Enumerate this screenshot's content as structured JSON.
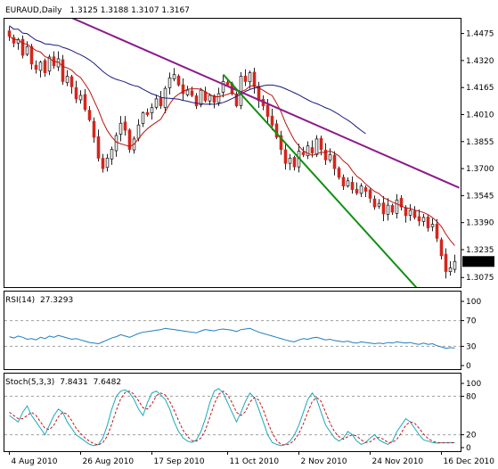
{
  "colors": {
    "background": "#ffffff",
    "frame": "#000000",
    "candle_body": "#d4261d",
    "candle_wick": "#222222",
    "ma_fast": "#b8150e",
    "ma_slow": "#1a1a80",
    "trend_purple": "#8b1a8b",
    "trend_green": "#109010",
    "rsi_line": "#1e7fbf",
    "stoch_k": "#1aa9bd",
    "stoch_d": "#c01818",
    "grid_dash": "#a0a0a0",
    "price_tag_bg": "#000000",
    "price_tag_text": "#ffffff"
  },
  "header": {
    "symbol": "EURAUD,Daily",
    "ohlc": "1.3125 1.3188 1.3107 1.3167"
  },
  "rsi_header": {
    "label": "RSI(14)",
    "value": "27.3293"
  },
  "stoch_header": {
    "label": "Stoch(5,3,3)",
    "k": "7.8431",
    "d": "7.6482"
  },
  "price_tag": "1.3167",
  "chart_data": [
    {
      "type": "candlestick",
      "title": "EURAUD,Daily",
      "y_ticks": [
        "1.4475",
        "1.4320",
        "1.4165",
        "1.4010",
        "1.3855",
        "1.3700",
        "1.3545",
        "1.3390",
        "1.3235",
        "1.3075"
      ],
      "ylim": [
        1.302,
        1.4565
      ],
      "x_ticks": [
        "4 Aug 2010",
        "26 Aug 2010",
        "17 Sep 2010",
        "11 Oct 2010",
        "2 Nov 2010",
        "24 Nov 2010",
        "16 Dec 2010"
      ],
      "x_tick_index": [
        0,
        16,
        32,
        49,
        65,
        81,
        97
      ],
      "candle_count": 101,
      "close_series": [
        1.446,
        1.442,
        1.444,
        1.435,
        1.44,
        1.43,
        1.427,
        1.431,
        1.425,
        1.434,
        1.429,
        1.433,
        1.42,
        1.423,
        1.417,
        1.41,
        1.412,
        1.404,
        1.398,
        1.388,
        1.376,
        1.37,
        1.376,
        1.381,
        1.389,
        1.396,
        1.392,
        1.381,
        1.387,
        1.395,
        1.402,
        1.401,
        1.405,
        1.41,
        1.406,
        1.416,
        1.422,
        1.424,
        1.418,
        1.413,
        1.415,
        1.412,
        1.406,
        1.415,
        1.409,
        1.412,
        1.408,
        1.413,
        1.42,
        1.418,
        1.413,
        1.406,
        1.423,
        1.42,
        1.425,
        1.417,
        1.409,
        1.406,
        1.4,
        1.395,
        1.388,
        1.381,
        1.373,
        1.376,
        1.371,
        1.38,
        1.378,
        1.383,
        1.379,
        1.387,
        1.381,
        1.375,
        1.378,
        1.37,
        1.365,
        1.36,
        1.363,
        1.358,
        1.356,
        1.36,
        1.357,
        1.353,
        1.348,
        1.35,
        1.344,
        1.349,
        1.345,
        1.352,
        1.348,
        1.343,
        1.346,
        1.342,
        1.34,
        1.342,
        1.336,
        1.338,
        1.33,
        1.32,
        1.311,
        1.313,
        1.3167
      ],
      "ma_fast_label": "MA (red)",
      "ma_slow_label": "MA (navy)",
      "trendlines": [
        {
          "color": "purple",
          "from": [
            14,
            1.4565
          ],
          "to": [
            101,
            1.359
          ]
        },
        {
          "color": "green",
          "from": [
            48,
            1.424
          ],
          "to": [
            92,
            1.3
          ]
        }
      ]
    },
    {
      "type": "line",
      "title": "RSI(14) 27.3293",
      "y_ticks": [
        "100",
        "70",
        "30",
        "0"
      ],
      "ylim": [
        0,
        100
      ],
      "levels": [
        70,
        30
      ],
      "series": [
        {
          "name": "RSI(14)",
          "values": [
            45,
            43,
            46,
            44,
            41,
            42,
            40,
            44,
            42,
            46,
            44,
            47,
            45,
            43,
            41,
            42,
            40,
            38,
            36,
            35,
            34,
            37,
            40,
            43,
            45,
            48,
            46,
            44,
            47,
            50,
            52,
            53,
            54,
            55,
            56,
            58,
            57,
            56,
            55,
            54,
            53,
            52,
            51,
            54,
            56,
            55,
            54,
            56,
            57,
            56,
            55,
            53,
            56,
            57,
            58,
            55,
            52,
            50,
            48,
            46,
            44,
            42,
            40,
            38,
            37,
            40,
            42,
            41,
            43,
            44,
            42,
            40,
            41,
            39,
            38,
            37,
            38,
            36,
            35,
            37,
            36,
            35,
            34,
            35,
            34,
            36,
            35,
            37,
            36,
            35,
            36,
            34,
            33,
            35,
            33,
            34,
            31,
            29,
            27,
            28,
            27.3
          ]
        }
      ]
    },
    {
      "type": "line",
      "title": "Stoch(5,3,3) 7.8431 7.6482",
      "y_ticks": [
        "100",
        "80",
        "20",
        "0"
      ],
      "ylim": [
        0,
        100
      ],
      "levels": [
        80,
        20
      ],
      "series": [
        {
          "name": "%K",
          "values": [
            50,
            45,
            40,
            55,
            65,
            50,
            40,
            30,
            20,
            35,
            50,
            60,
            55,
            40,
            30,
            20,
            15,
            10,
            5,
            3,
            5,
            15,
            35,
            60,
            80,
            88,
            90,
            85,
            75,
            60,
            50,
            70,
            85,
            88,
            82,
            75,
            60,
            40,
            25,
            15,
            10,
            8,
            12,
            25,
            45,
            70,
            88,
            92,
            85,
            70,
            55,
            40,
            55,
            72,
            85,
            78,
            60,
            40,
            20,
            8,
            5,
            3,
            5,
            10,
            20,
            35,
            55,
            75,
            85,
            75,
            55,
            35,
            25,
            15,
            10,
            15,
            25,
            20,
            10,
            5,
            8,
            15,
            20,
            12,
            8,
            5,
            10,
            25,
            35,
            45,
            40,
            30,
            20,
            12,
            10,
            8,
            7,
            7.5,
            7.8,
            7.8,
            7.8431
          ]
        },
        {
          "name": "%D",
          "values": [
            55,
            50,
            45,
            45,
            50,
            55,
            50,
            40,
            30,
            28,
            35,
            48,
            55,
            52,
            42,
            30,
            22,
            15,
            10,
            6,
            4,
            8,
            18,
            37,
            58,
            76,
            86,
            88,
            83,
            73,
            62,
            60,
            68,
            81,
            85,
            82,
            72,
            58,
            42,
            27,
            17,
            11,
            10,
            15,
            27,
            47,
            68,
            83,
            88,
            82,
            70,
            55,
            50,
            56,
            71,
            78,
            74,
            59,
            40,
            23,
            11,
            5,
            4,
            6,
            12,
            22,
            37,
            55,
            72,
            78,
            72,
            55,
            38,
            25,
            17,
            13,
            17,
            20,
            18,
            12,
            8,
            9,
            14,
            16,
            13,
            8,
            8,
            13,
            23,
            35,
            40,
            38,
            30,
            21,
            14,
            10,
            8,
            7.5,
            7.4,
            7.5,
            7.6482
          ]
        }
      ]
    }
  ]
}
